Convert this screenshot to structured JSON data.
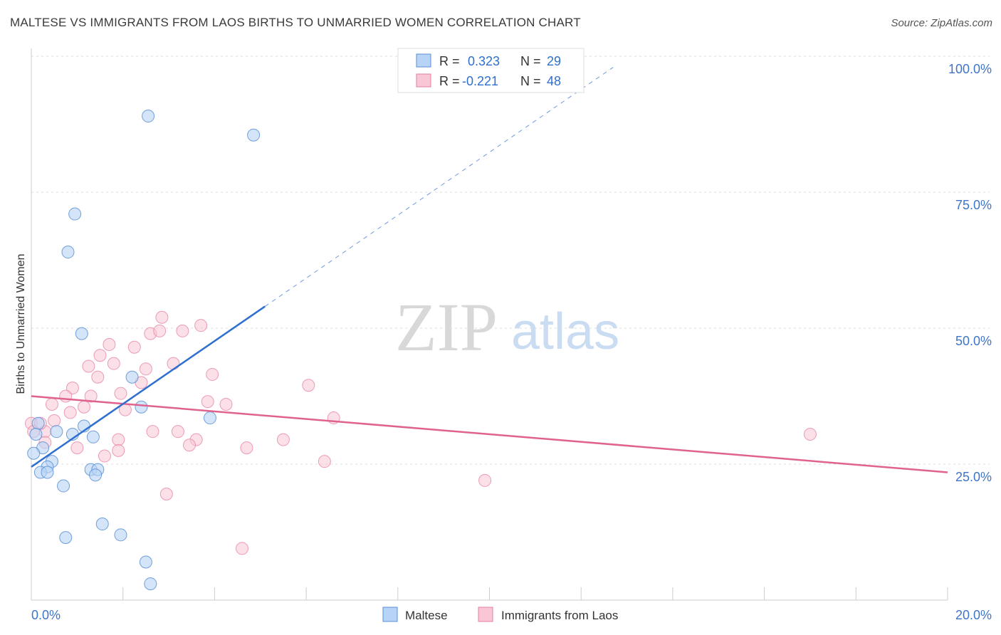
{
  "header": {
    "title": "MALTESE VS IMMIGRANTS FROM LAOS BIRTHS TO UNMARRIED WOMEN CORRELATION CHART",
    "source": "Source: ZipAtlas.com"
  },
  "watermark": {
    "zip": "ZIP",
    "atlas": "atlas"
  },
  "colors": {
    "blue_fill": "#b7d3f5",
    "blue_stroke": "#5a8fd6",
    "blue_line": "#2f6fd0",
    "pink_fill": "#f9c6d6",
    "pink_stroke": "#e57fa0",
    "pink_line": "#e0638f",
    "axis_text": "#3f74c9",
    "grid": "#dddddd"
  },
  "legend_box": {
    "rows": [
      {
        "r_label": "R =",
        "r_value": "0.323",
        "n_label": "N =",
        "n_value": "29"
      },
      {
        "r_label": "R =",
        "r_value": "-0.221",
        "n_label": "N =",
        "n_value": "48"
      }
    ]
  },
  "chart_data": {
    "type": "scatter",
    "title": "MALTESE VS IMMIGRANTS FROM LAOS BIRTHS TO UNMARRIED WOMEN CORRELATION CHART",
    "xlabel": "",
    "ylabel": "Births to Unmarried Women",
    "xlim": [
      0,
      20
    ],
    "ylim": [
      0,
      100
    ],
    "x_tick_labels": [
      "0.0%",
      "20.0%"
    ],
    "y_ticks": [
      25,
      50,
      75,
      100
    ],
    "y_tick_labels": [
      "25.0%",
      "50.0%",
      "75.0%",
      "100.0%"
    ],
    "grid": true,
    "legend_position": "bottom",
    "series": [
      {
        "name": "Maltese",
        "color": "#b7d3f5",
        "r": 0.323,
        "n": 29,
        "trend": {
          "x": [
            0,
            5.1
          ],
          "y": [
            24.5,
            54.0
          ],
          "extended_to_x": 12.7
        },
        "points": [
          [
            2.55,
            89
          ],
          [
            4.85,
            85.5
          ],
          [
            0.95,
            71
          ],
          [
            0.8,
            64
          ],
          [
            1.1,
            49
          ],
          [
            2.2,
            41
          ],
          [
            2.4,
            35.5
          ],
          [
            3.9,
            33.5
          ],
          [
            1.15,
            32
          ],
          [
            0.9,
            30.5
          ],
          [
            1.35,
            30
          ],
          [
            0.55,
            31
          ],
          [
            0.25,
            28
          ],
          [
            0.05,
            27
          ],
          [
            0.45,
            25.5
          ],
          [
            0.35,
            24.5
          ],
          [
            0.2,
            23.5
          ],
          [
            0.35,
            23.5
          ],
          [
            1.3,
            24
          ],
          [
            1.45,
            24
          ],
          [
            1.4,
            23
          ],
          [
            0.7,
            21
          ],
          [
            1.55,
            14
          ],
          [
            1.95,
            12
          ],
          [
            0.75,
            11.5
          ],
          [
            2.5,
            7
          ],
          [
            2.6,
            3
          ],
          [
            0.15,
            32.5
          ],
          [
            0.1,
            30.5
          ]
        ]
      },
      {
        "name": "Immigrants from Laos",
        "color": "#f9c6d6",
        "r": -0.221,
        "n": 48,
        "trend": {
          "x": [
            0,
            20
          ],
          "y": [
            37.5,
            23.5
          ]
        },
        "points": [
          [
            2.85,
            52
          ],
          [
            3.7,
            50.5
          ],
          [
            3.3,
            49.5
          ],
          [
            2.6,
            49
          ],
          [
            2.8,
            49.5
          ],
          [
            1.7,
            47
          ],
          [
            2.25,
            46.5
          ],
          [
            1.5,
            45
          ],
          [
            1.8,
            43.5
          ],
          [
            3.1,
            43.5
          ],
          [
            1.25,
            43
          ],
          [
            2.5,
            42.5
          ],
          [
            3.95,
            41.5
          ],
          [
            1.45,
            41
          ],
          [
            2.4,
            40
          ],
          [
            6.05,
            39.5
          ],
          [
            0.9,
            39
          ],
          [
            1.95,
            38
          ],
          [
            0.75,
            37.5
          ],
          [
            1.3,
            37.5
          ],
          [
            3.85,
            36.5
          ],
          [
            4.25,
            36
          ],
          [
            0.45,
            36
          ],
          [
            1.15,
            35.5
          ],
          [
            2.05,
            35
          ],
          [
            0.85,
            34.5
          ],
          [
            6.6,
            33.5
          ],
          [
            0.5,
            33
          ],
          [
            0.3,
            31
          ],
          [
            0.0,
            32.5
          ],
          [
            2.65,
            31
          ],
          [
            3.2,
            31
          ],
          [
            1.9,
            29.5
          ],
          [
            3.6,
            29.5
          ],
          [
            5.5,
            29.5
          ],
          [
            3.45,
            28.5
          ],
          [
            0.3,
            29
          ],
          [
            0.05,
            31
          ],
          [
            1.0,
            28
          ],
          [
            4.7,
            28
          ],
          [
            1.9,
            27.5
          ],
          [
            1.6,
            26.5
          ],
          [
            6.4,
            25.5
          ],
          [
            9.9,
            22
          ],
          [
            17.0,
            30.5
          ],
          [
            2.95,
            19.5
          ],
          [
            4.6,
            9.5
          ],
          [
            0.2,
            32.5
          ]
        ]
      }
    ]
  },
  "bottom_legend": {
    "items": [
      {
        "label": "Maltese"
      },
      {
        "label": "Immigrants from Laos"
      }
    ]
  }
}
